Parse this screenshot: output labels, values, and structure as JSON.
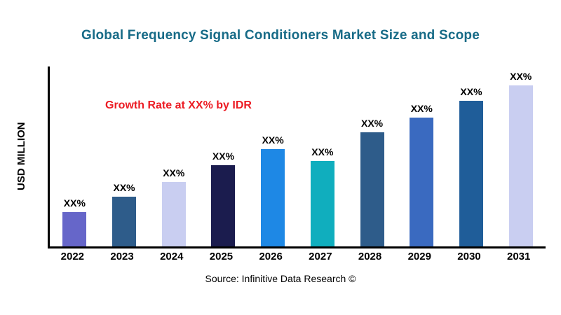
{
  "title": "Global Frequency Signal Conditioners  Market Size and Scope",
  "annotation": "Growth Rate at XX% by IDR",
  "y_axis_label": "USD MILLION",
  "source": "Source: Infinitive Data Research ©",
  "colors": {
    "title": "#176B87",
    "annotation": "#EC1C24",
    "axis": "#000000"
  },
  "chart_data": {
    "type": "bar",
    "title": "Global Frequency Signal Conditioners  Market Size and Scope",
    "xlabel": "",
    "ylabel": "USD MILLION",
    "categories": [
      "2022",
      "2023",
      "2024",
      "2025",
      "2026",
      "2027",
      "2028",
      "2029",
      "2030",
      "2031"
    ],
    "values": [
      50,
      72,
      93,
      117,
      141,
      123,
      165,
      186,
      210,
      233
    ],
    "bar_labels": [
      "XX%",
      "XX%",
      "XX%",
      "XX%",
      "XX%",
      "XX%",
      "XX%",
      "XX%",
      "XX%",
      "XX%"
    ],
    "bar_colors": [
      "#6666C9",
      "#2E5C8A",
      "#C9CEF1",
      "#1B1C4E",
      "#1E88E5",
      "#10AEBE",
      "#2E5C8A",
      "#3A6AC0",
      "#1F5D99",
      "#C9CEF1"
    ],
    "ylim": [
      0,
      260
    ],
    "grid": false,
    "legend_position": "none",
    "annotation": "Growth Rate at XX% by IDR"
  }
}
